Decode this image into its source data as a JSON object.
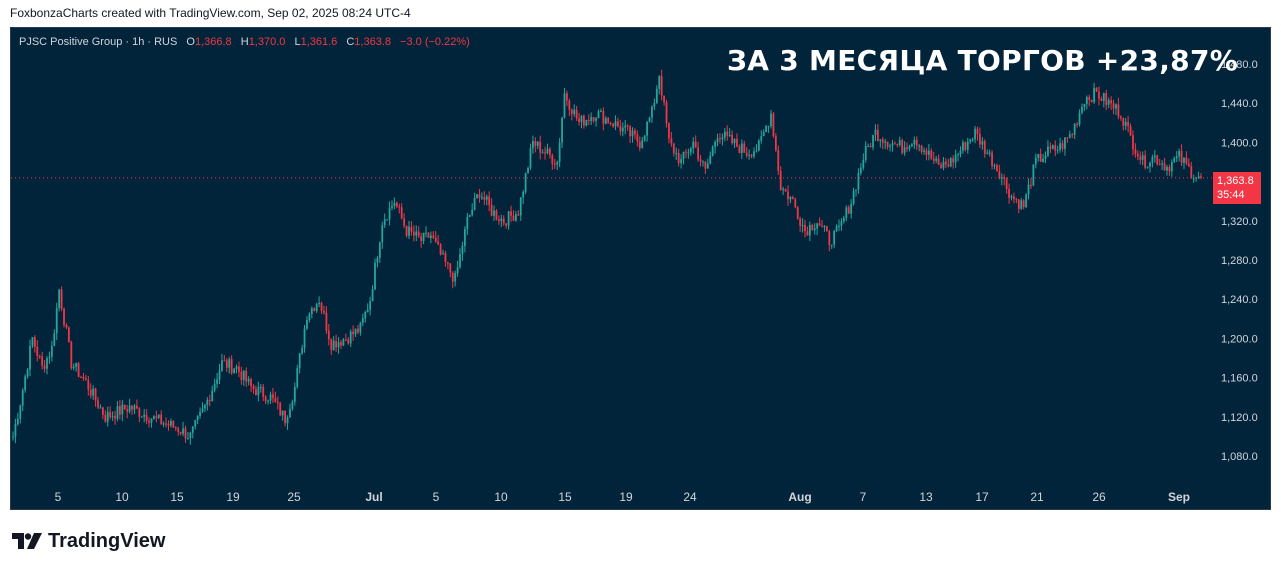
{
  "header": {
    "attribution": "FoxbonzaCharts created with TradingView.com, Sep 02, 2025 08:24 UTC-4"
  },
  "legend": {
    "symbol": "PJSC Positive Group · 1h · RUS",
    "open_label": "O",
    "open": "1,366.8",
    "high_label": "H",
    "high": "1,370.0",
    "low_label": "L",
    "low": "1,361.6",
    "close_label": "C",
    "close": "1,363.8",
    "change": "−3.0 (−0.22%)"
  },
  "annotation": "ЗА 3 МЕСЯЦА ТОРГОВ +23,87%",
  "price_badge": {
    "price": "1,363.8",
    "countdown": "35:44"
  },
  "brand": {
    "name": "TradingView"
  },
  "colors": {
    "background": "#02243a",
    "up": "#26a69a",
    "down": "#f23645",
    "text": "#d1d4dc",
    "current_price_line": "#f23645"
  },
  "chart_data": {
    "type": "candlestick",
    "title": "PJSC Positive Group · 1h · RUS",
    "ylim": [
      1060,
      1500
    ],
    "y_ticks": [
      1080,
      1120,
      1160,
      1200,
      1240,
      1280,
      1320,
      1360,
      1400,
      1440,
      1480
    ],
    "y_tick_labels": [
      "1,080.0",
      "1,120.0",
      "1,160.0",
      "1,200.0",
      "1,240.0",
      "1,280.0",
      "1,320.0",
      "",
      "1,400.0",
      "1,440.0",
      "1,480.0"
    ],
    "x_tick_labels": [
      "5",
      "10",
      "15",
      "19",
      "25",
      "Jul",
      "5",
      "10",
      "15",
      "19",
      "24",
      "Aug",
      "7",
      "13",
      "17",
      "21",
      "26",
      "Sep"
    ],
    "current_price": 1363.8,
    "grid": false,
    "path": [
      [
        0,
        1100
      ],
      [
        3,
        1135
      ],
      [
        8,
        1200
      ],
      [
        12,
        1170
      ],
      [
        16,
        1190
      ],
      [
        19,
        1250
      ],
      [
        24,
        1175
      ],
      [
        30,
        1155
      ],
      [
        38,
        1120
      ],
      [
        48,
        1130
      ],
      [
        58,
        1118
      ],
      [
        68,
        1108
      ],
      [
        73,
        1100
      ],
      [
        79,
        1130
      ],
      [
        86,
        1175
      ],
      [
        92,
        1170
      ],
      [
        98,
        1150
      ],
      [
        106,
        1140
      ],
      [
        112,
        1118
      ],
      [
        116,
        1150
      ],
      [
        121,
        1225
      ],
      [
        126,
        1240
      ],
      [
        131,
        1195
      ],
      [
        137,
        1200
      ],
      [
        143,
        1210
      ],
      [
        147,
        1240
      ],
      [
        152,
        1320
      ],
      [
        157,
        1340
      ],
      [
        162,
        1310
      ],
      [
        168,
        1300
      ],
      [
        172,
        1305
      ],
      [
        177,
        1280
      ],
      [
        182,
        1260
      ],
      [
        187,
        1320
      ],
      [
        192,
        1350
      ],
      [
        197,
        1330
      ],
      [
        202,
        1320
      ],
      [
        208,
        1330
      ],
      [
        214,
        1400
      ],
      [
        219,
        1390
      ],
      [
        224,
        1380
      ],
      [
        227,
        1450
      ],
      [
        233,
        1420
      ],
      [
        240,
        1430
      ],
      [
        247,
        1420
      ],
      [
        253,
        1410
      ],
      [
        258,
        1400
      ],
      [
        263,
        1430
      ],
      [
        266,
        1470
      ],
      [
        270,
        1400
      ],
      [
        275,
        1380
      ],
      [
        280,
        1400
      ],
      [
        285,
        1370
      ],
      [
        290,
        1410
      ],
      [
        296,
        1400
      ],
      [
        302,
        1390
      ],
      [
        307,
        1395
      ],
      [
        312,
        1430
      ],
      [
        316,
        1355
      ],
      [
        321,
        1340
      ],
      [
        326,
        1310
      ],
      [
        331,
        1320
      ],
      [
        336,
        1300
      ],
      [
        340,
        1310
      ],
      [
        345,
        1340
      ],
      [
        350,
        1385
      ],
      [
        355,
        1410
      ],
      [
        361,
        1400
      ],
      [
        366,
        1395
      ],
      [
        371,
        1405
      ],
      [
        376,
        1390
      ],
      [
        381,
        1375
      ],
      [
        386,
        1380
      ],
      [
        391,
        1395
      ],
      [
        396,
        1410
      ],
      [
        401,
        1390
      ],
      [
        406,
        1370
      ],
      [
        411,
        1345
      ],
      [
        416,
        1335
      ],
      [
        421,
        1380
      ],
      [
        426,
        1390
      ],
      [
        431,
        1395
      ],
      [
        436,
        1410
      ],
      [
        441,
        1445
      ],
      [
        446,
        1450
      ],
      [
        451,
        1440
      ],
      [
        456,
        1430
      ],
      [
        460,
        1405
      ],
      [
        465,
        1380
      ],
      [
        470,
        1385
      ],
      [
        475,
        1375
      ],
      [
        480,
        1385
      ],
      [
        485,
        1370
      ],
      [
        489,
        1363.8
      ]
    ]
  }
}
